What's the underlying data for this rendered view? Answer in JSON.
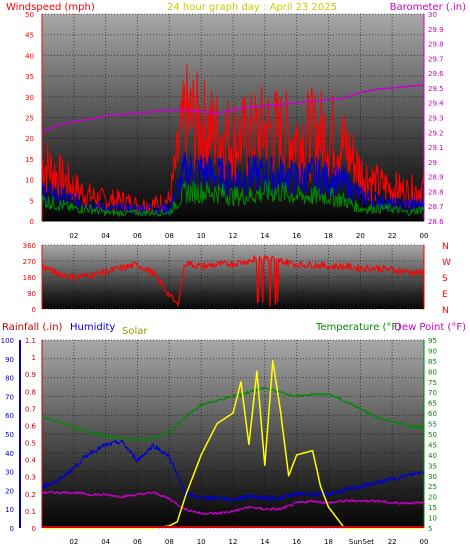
{
  "header": {
    "left_label": "Windspeed (mph)",
    "title": "24 hour graph day : April 23 2025",
    "right_label": "Barometer (.in)"
  },
  "colors": {
    "windspeed": "#ff0000",
    "gust": "#0000cc",
    "avg": "#008800",
    "barometer": "#cc00cc",
    "title": "#cccc00",
    "direction": "#ff0000",
    "rainfall": "#cc0000",
    "humidity": "#0000cc",
    "solar": "#999900",
    "temperature": "#008800",
    "dewpoint": "#cc00cc",
    "solar_line": "#ffff00"
  },
  "chart_data": [
    {
      "type": "line",
      "x_ticks": [
        "02",
        "04",
        "06",
        "08",
        "10",
        "12",
        "14",
        "16",
        "18",
        "20",
        "22",
        "00"
      ],
      "ylabel_left": "Windspeed (mph)",
      "ylim_left": [
        0,
        50
      ],
      "y_ticks_left": [
        0,
        5,
        10,
        15,
        20,
        25,
        30,
        35,
        40,
        45,
        50
      ],
      "ylabel_right": "Barometer (.in)",
      "ylim_right": [
        28.6,
        30.0
      ],
      "y_ticks_right": [
        "28.6",
        "28.7",
        "28.8",
        "28.9",
        "29",
        "29.1",
        "29.2",
        "29.3",
        "29.4",
        "29.5",
        "29.6",
        "29.7",
        "29.8",
        "29.9",
        "30"
      ],
      "grid": true,
      "series": [
        {
          "name": "Windspeed (mph)",
          "axis": "left",
          "color": "#ff0000",
          "x": [
            0,
            1,
            2,
            3,
            4,
            5,
            6,
            7,
            8,
            9,
            10,
            11,
            12,
            13,
            14,
            15,
            16,
            17,
            18,
            19,
            20,
            21,
            22,
            23,
            24
          ],
          "y": [
            14,
            11,
            8,
            6,
            5,
            5,
            4,
            4,
            5,
            25,
            23,
            21,
            20,
            20,
            22,
            21,
            20,
            21,
            21,
            18,
            12,
            9,
            8,
            7,
            8
          ]
        },
        {
          "name": "Gust",
          "axis": "left",
          "color": "#0000cc",
          "x": [
            0,
            1,
            2,
            3,
            4,
            5,
            6,
            7,
            8,
            9,
            10,
            11,
            12,
            13,
            14,
            15,
            16,
            17,
            18,
            19,
            20,
            21,
            22,
            23,
            24
          ],
          "y": [
            7,
            6,
            5,
            4,
            3,
            3,
            3,
            3,
            3,
            12,
            12,
            11,
            10,
            11,
            11,
            11,
            10,
            11,
            10,
            9,
            6,
            5,
            4,
            4,
            4
          ]
        },
        {
          "name": "Average",
          "axis": "left",
          "color": "#008800",
          "x": [
            0,
            1,
            2,
            3,
            4,
            5,
            6,
            7,
            8,
            9,
            10,
            11,
            12,
            13,
            14,
            15,
            16,
            17,
            18,
            19,
            20,
            21,
            22,
            23,
            24
          ],
          "y": [
            5,
            4,
            3,
            3,
            2,
            2,
            2,
            2,
            2,
            7,
            7,
            7,
            6,
            6,
            7,
            7,
            6,
            6,
            6,
            5,
            3,
            3,
            3,
            2,
            3
          ]
        },
        {
          "name": "Barometer (.in)",
          "axis": "right",
          "color": "#cc00cc",
          "x": [
            0,
            1,
            2,
            3,
            4,
            5,
            6,
            7,
            8,
            9,
            10,
            11,
            12,
            13,
            14,
            15,
            16,
            17,
            18,
            19,
            20,
            21,
            22,
            23,
            24
          ],
          "y": [
            29.2,
            29.25,
            29.27,
            29.29,
            29.31,
            29.32,
            29.33,
            29.34,
            29.35,
            29.35,
            29.34,
            29.33,
            29.35,
            29.37,
            29.38,
            29.39,
            29.4,
            29.41,
            29.42,
            29.43,
            29.47,
            29.49,
            29.5,
            29.51,
            29.52
          ]
        }
      ]
    },
    {
      "type": "line",
      "x_ticks": [
        "02",
        "04",
        "06",
        "08",
        "10",
        "12",
        "14",
        "16",
        "18",
        "20",
        "22",
        "00"
      ],
      "ylim": [
        0,
        360
      ],
      "y_ticks": [
        0,
        90,
        180,
        270,
        360
      ],
      "right_labels": [
        "N",
        "W",
        "S",
        "E",
        "N"
      ],
      "grid": true,
      "series": [
        {
          "name": "Wind direction",
          "color": "#ff0000",
          "x": [
            0,
            1,
            2,
            3,
            4,
            5,
            6,
            7,
            8,
            8.5,
            9,
            10,
            11,
            12,
            13,
            14,
            15,
            16,
            17,
            18,
            19,
            20,
            21,
            22,
            23,
            24
          ],
          "y": [
            240,
            200,
            180,
            190,
            210,
            230,
            250,
            200,
            80,
            20,
            260,
            240,
            250,
            255,
            270,
            300,
            270,
            250,
            250,
            240,
            240,
            230,
            230,
            220,
            210,
            200
          ]
        }
      ]
    },
    {
      "type": "line",
      "x_ticks": [
        "02",
        "04",
        "06",
        "08",
        "10",
        "12",
        "14",
        "16",
        "18",
        "Sun",
        "Set",
        "22",
        "00"
      ],
      "legend": [
        "Rainfall (.in)",
        "Humidity",
        "Solar",
        "Temperature (°F)",
        "Dew Point (°F)"
      ],
      "ylim_humidity": [
        0,
        100
      ],
      "y_ticks_humidity": [
        0,
        10,
        20,
        30,
        40,
        50,
        60,
        70,
        80,
        90,
        100
      ],
      "ylim_rain": [
        0,
        1.1
      ],
      "y_ticks_rain": [
        "0",
        "0.1",
        "0.2",
        "0.3",
        "0.4",
        "0.5",
        "0.6",
        "0.7",
        "0.8",
        "0.9",
        "1",
        "1.1"
      ],
      "ylim_temp": [
        5,
        95
      ],
      "y_ticks_temp": [
        5,
        10,
        15,
        20,
        25,
        30,
        35,
        40,
        45,
        50,
        55,
        60,
        65,
        70,
        75,
        80,
        85,
        90,
        95
      ],
      "grid": true,
      "series": [
        {
          "name": "Temperature (°F)",
          "axis": "temp",
          "color": "#008800",
          "x": [
            0,
            1,
            2,
            3,
            4,
            5,
            6,
            7,
            8,
            9,
            10,
            11,
            12,
            13,
            14,
            15,
            16,
            17,
            18,
            19,
            20,
            21,
            22,
            23,
            24
          ],
          "y": [
            58,
            56,
            53,
            51,
            49,
            48,
            47,
            48,
            51,
            58,
            64,
            66,
            68,
            70,
            72,
            70,
            68,
            69,
            69,
            66,
            62,
            58,
            56,
            54,
            53
          ]
        },
        {
          "name": "Dew Point (°F)",
          "axis": "temp",
          "color": "#cc00cc",
          "x": [
            0,
            1,
            2,
            3,
            4,
            5,
            6,
            7,
            8,
            9,
            10,
            11,
            12,
            13,
            14,
            15,
            16,
            17,
            18,
            19,
            20,
            21,
            22,
            23,
            24
          ],
          "y": [
            22,
            22,
            22,
            21,
            21,
            20,
            21,
            22,
            19,
            14,
            12,
            12,
            13,
            15,
            14,
            14,
            17,
            18,
            17,
            18,
            18,
            18,
            17,
            17,
            17
          ]
        },
        {
          "name": "Humidity",
          "axis": "humidity",
          "color": "#0000cc",
          "x": [
            0,
            1,
            2,
            3,
            4,
            5,
            6,
            7,
            8,
            9,
            10,
            11,
            12,
            13,
            14,
            15,
            16,
            17,
            18,
            19,
            20,
            21,
            22,
            23,
            24
          ],
          "y": [
            22,
            25,
            32,
            40,
            44,
            46,
            36,
            44,
            38,
            18,
            16,
            16,
            15,
            17,
            16,
            16,
            18,
            18,
            18,
            20,
            22,
            24,
            26,
            28,
            30
          ]
        },
        {
          "name": "Solar",
          "axis": "temp",
          "color": "#ffff00",
          "x": [
            0,
            5,
            6,
            7,
            8,
            8.5,
            9,
            10,
            11,
            12,
            12.5,
            13,
            13.5,
            14,
            14.5,
            15,
            15.5,
            16,
            17,
            17.5,
            18,
            19,
            20,
            24
          ],
          "y": [
            5,
            5,
            5,
            5,
            6,
            8,
            20,
            40,
            55,
            60,
            75,
            45,
            80,
            35,
            85,
            60,
            30,
            40,
            42,
            25,
            15,
            5,
            5,
            5
          ]
        }
      ]
    }
  ]
}
